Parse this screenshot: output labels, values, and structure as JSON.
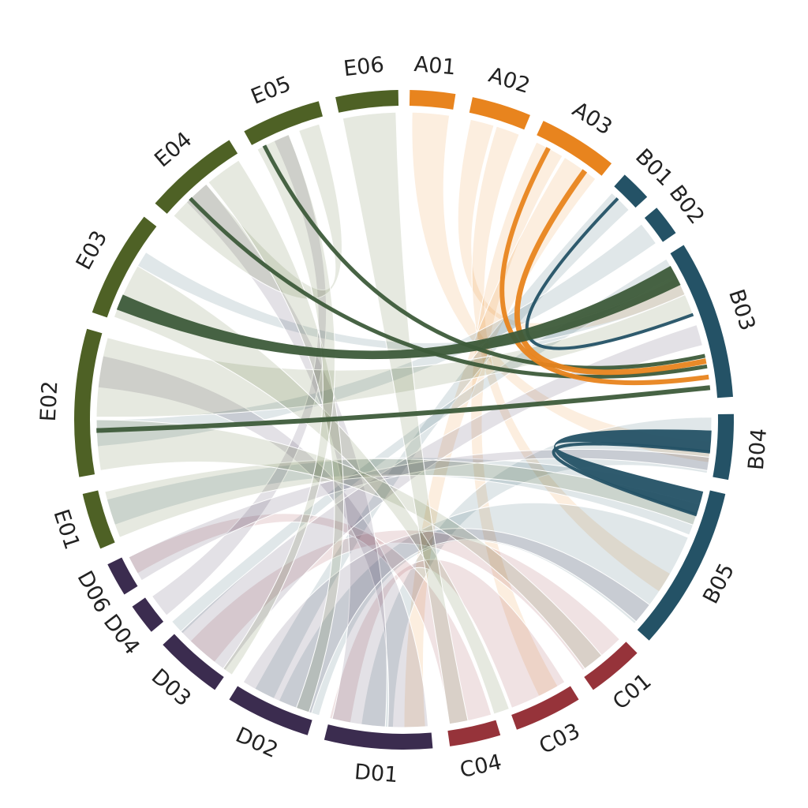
{
  "colors": {
    "A": "#e8841e",
    "B": "#245266",
    "C": "#96333a",
    "D": "#3b2c4f",
    "E": "#4e6125",
    "highlight": "#3d5b3a"
  },
  "segments": [
    {
      "id": "A01",
      "group": "A"
    },
    {
      "id": "A02",
      "group": "A"
    },
    {
      "id": "A03",
      "group": "A"
    },
    {
      "id": "B01",
      "group": "B"
    },
    {
      "id": "B02",
      "group": "B"
    },
    {
      "id": "B03",
      "group": "B"
    },
    {
      "id": "B04",
      "group": "B"
    },
    {
      "id": "B05",
      "group": "B"
    },
    {
      "id": "C01",
      "group": "C"
    },
    {
      "id": "C03",
      "group": "C"
    },
    {
      "id": "C04",
      "group": "C"
    },
    {
      "id": "D01",
      "group": "D"
    },
    {
      "id": "D02",
      "group": "D"
    },
    {
      "id": "D03",
      "group": "D"
    },
    {
      "id": "D04",
      "group": "D"
    },
    {
      "id": "D06",
      "group": "D"
    },
    {
      "id": "E01",
      "group": "E"
    },
    {
      "id": "E02",
      "group": "E"
    },
    {
      "id": "E03",
      "group": "E"
    },
    {
      "id": "E04",
      "group": "E"
    },
    {
      "id": "E05",
      "group": "E"
    },
    {
      "id": "E06",
      "group": "E"
    }
  ]
}
